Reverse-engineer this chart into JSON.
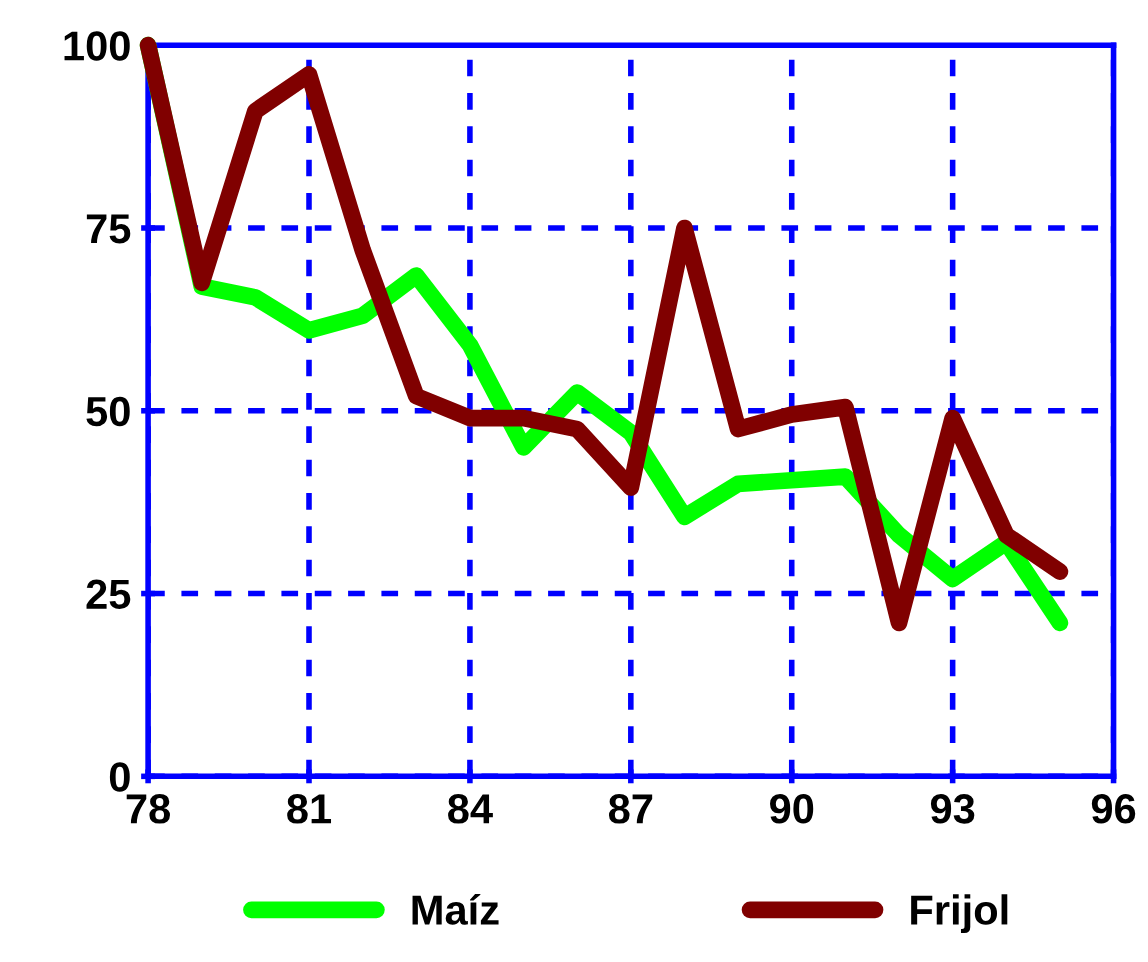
{
  "chart_data": {
    "type": "line",
    "x": [
      78,
      79,
      80,
      81,
      82,
      83,
      84,
      85,
      86,
      87,
      88,
      89,
      90,
      91,
      92,
      93,
      94,
      95
    ],
    "series": [
      {
        "name": "Maíz",
        "color": "#00ff00",
        "values": [
          100,
          67,
          65.5,
          61,
          63,
          68.5,
          59,
          45,
          52.5,
          47,
          35.5,
          40,
          40.5,
          41,
          33,
          27,
          32,
          21
        ]
      },
      {
        "name": "Frijol",
        "color": "#800000",
        "values": [
          100,
          67.5,
          91,
          96,
          72,
          52,
          49,
          49,
          47.5,
          39.5,
          75,
          47.5,
          49.5,
          50.5,
          21,
          49,
          33,
          28
        ]
      }
    ],
    "xlim": [
      78,
      96
    ],
    "xticks": [
      78,
      81,
      84,
      87,
      90,
      93,
      96
    ],
    "ylim": [
      0,
      100
    ],
    "yticks": [
      0,
      25,
      50,
      75,
      100
    ],
    "grid": true,
    "legend": "bottom",
    "marker": "none",
    "line_style": "solid"
  }
}
